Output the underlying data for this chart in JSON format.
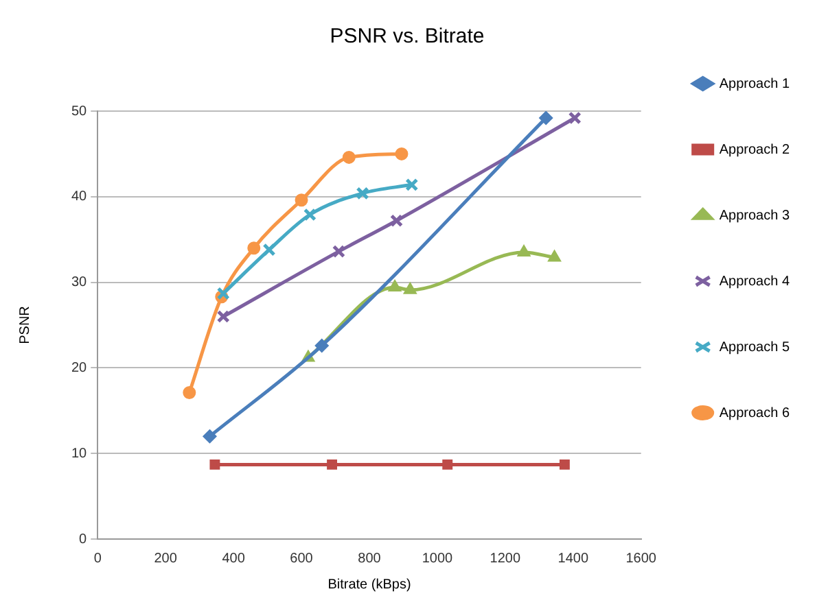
{
  "chart_data": {
    "type": "line",
    "title": "PSNR vs. Bitrate",
    "xlabel": "Bitrate (kBps)",
    "ylabel": "PSNR",
    "xlim": [
      0,
      1600
    ],
    "xticks": [
      0,
      200,
      400,
      600,
      800,
      1000,
      1200,
      1400,
      1600
    ],
    "ylim": [
      0,
      50
    ],
    "yticks": [
      0,
      10,
      20,
      30,
      40,
      50
    ],
    "grid": "y",
    "legend": "right",
    "series": [
      {
        "name": "Approach 1",
        "color": "#4a7ebb",
        "marker": "diamond",
        "x": [
          330,
          660,
          1320
        ],
        "values": [
          12,
          22.6,
          49.2
        ]
      },
      {
        "name": "Approach 2",
        "color": "#be4b48",
        "marker": "square",
        "x": [
          345,
          690,
          1030,
          1375
        ],
        "values": [
          8.7,
          8.7,
          8.7,
          8.7
        ]
      },
      {
        "name": "Approach 3",
        "color": "#98b954",
        "marker": "triangle",
        "x": [
          620,
          875,
          920,
          1255,
          1345
        ],
        "values": [
          21.2,
          29.4,
          29.1,
          33.5,
          32.9
        ]
      },
      {
        "name": "Approach 4",
        "color": "#7d60a0",
        "marker": "cross",
        "x": [
          370,
          710,
          880,
          1405
        ],
        "values": [
          26,
          33.6,
          37.2,
          49.2
        ]
      },
      {
        "name": "Approach 5",
        "color": "#46aac5",
        "marker": "cross",
        "x": [
          370,
          505,
          625,
          780,
          925
        ],
        "values": [
          28.7,
          33.8,
          37.9,
          40.4,
          41.4
        ]
      },
      {
        "name": "Approach 6",
        "color": "#f79646",
        "marker": "circle",
        "x": [
          270,
          365,
          460,
          600,
          740,
          895
        ],
        "values": [
          17.1,
          28.3,
          34,
          39.6,
          44.6,
          45
        ]
      }
    ]
  }
}
